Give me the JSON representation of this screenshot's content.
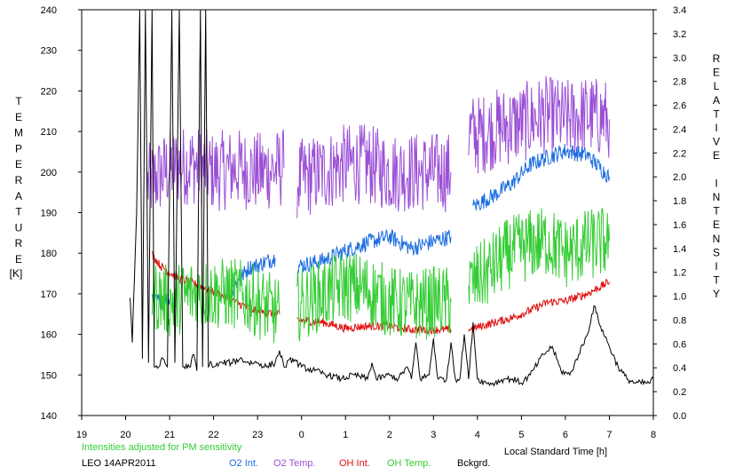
{
  "chart_data": {
    "type": "line",
    "left_axis": {
      "label_letters": [
        "T",
        "E",
        "M",
        "P",
        "E",
        "R",
        "A",
        "T",
        "U",
        "R",
        "E"
      ],
      "unit": "[K]",
      "ylim": [
        140,
        240
      ],
      "ticks": [
        "140",
        "150",
        "160",
        "170",
        "180",
        "190",
        "200",
        "210",
        "220",
        "230",
        "240"
      ]
    },
    "right_axis": {
      "label_letters": [
        "R",
        "E",
        "L",
        "A",
        "T",
        "I",
        "V",
        "E",
        "",
        "I",
        "N",
        "T",
        "E",
        "N",
        "S",
        "I",
        "T",
        "Y"
      ],
      "ylim": [
        0.0,
        3.4
      ],
      "ticks": [
        "0.0",
        "0.2",
        "0.4",
        "0.6",
        "0.8",
        "1.0",
        "1.2",
        "1.4",
        "1.6",
        "1.8",
        "2.0",
        "2.2",
        "2.4",
        "2.6",
        "2.8",
        "3.0",
        "3.2",
        "3.4"
      ]
    },
    "x_axis": {
      "label": "Local Standard Time [h]",
      "ticks": [
        "19",
        "20",
        "21",
        "22",
        "23",
        "0",
        "1",
        "2",
        "3",
        "4",
        "5",
        "6",
        "7",
        "8"
      ],
      "xlim": [
        19,
        32
      ]
    },
    "note": "Intensities adjusted for PM sensitivity",
    "station": "LEO 14APR2011",
    "legend": [
      {
        "label": "O2 Int.",
        "color": "#1e6ee0"
      },
      {
        "label": "O2 Temp.",
        "color": "#9b4fd6"
      },
      {
        "label": "OH Int.",
        "color": "#e01010"
      },
      {
        "label": "OH Temp.",
        "color": "#33cc33"
      },
      {
        "label": "Bckgrd.",
        "color": "#000000"
      }
    ],
    "series": [
      {
        "name": "O2 Temp.",
        "axis": "left",
        "color": "#9b4fd6",
        "noise": 10,
        "segments": [
          [
            [
              20.5,
              197
            ],
            [
              21.0,
              201
            ],
            [
              21.5,
              202
            ],
            [
              22.0,
              200
            ],
            [
              22.5,
              201
            ],
            [
              23.0,
              200
            ],
            [
              23.6,
              201
            ]
          ],
          [
            [
              23.9,
              198
            ],
            [
              24.5,
              200
            ],
            [
              25.0,
              202
            ],
            [
              25.5,
              202
            ],
            [
              26.0,
              200
            ],
            [
              26.5,
              200
            ],
            [
              27.0,
              200
            ],
            [
              27.4,
              200
            ]
          ],
          [
            [
              27.8,
              210
            ],
            [
              28.0,
              209
            ],
            [
              28.5,
              211
            ],
            [
              29.0,
              212
            ],
            [
              29.5,
              214
            ],
            [
              30.0,
              213
            ],
            [
              30.5,
              214
            ],
            [
              31.0,
              213
            ]
          ]
        ]
      },
      {
        "name": "O2 Int.",
        "axis": "right",
        "color": "#1e6ee0",
        "noise": 0.07,
        "segments": [
          [
            [
              20.6,
              0.95
            ],
            [
              21.0,
              0.98
            ]
          ],
          [
            [
              22.4,
              1.05
            ],
            [
              22.8,
              1.24
            ],
            [
              23.0,
              1.26
            ],
            [
              23.4,
              1.32
            ]
          ],
          [
            [
              23.9,
              1.25
            ],
            [
              24.5,
              1.3
            ],
            [
              25.0,
              1.38
            ],
            [
              25.5,
              1.45
            ],
            [
              26.0,
              1.5
            ],
            [
              26.5,
              1.4
            ],
            [
              27.0,
              1.46
            ],
            [
              27.4,
              1.5
            ]
          ],
          [
            [
              27.9,
              1.75
            ],
            [
              28.4,
              1.85
            ],
            [
              28.8,
              1.95
            ],
            [
              29.2,
              2.1
            ],
            [
              29.5,
              2.15
            ],
            [
              30.0,
              2.22
            ],
            [
              30.5,
              2.18
            ],
            [
              31.0,
              2.0
            ]
          ]
        ]
      },
      {
        "name": "OH Int.",
        "axis": "right",
        "color": "#e01010",
        "noise": 0.035,
        "segments": [
          [
            [
              20.6,
              1.35
            ],
            [
              20.8,
              1.25
            ],
            [
              21.2,
              1.15
            ],
            [
              21.6,
              1.1
            ],
            [
              21.9,
              1.05
            ],
            [
              22.2,
              1.0
            ],
            [
              22.5,
              0.95
            ],
            [
              23.0,
              0.87
            ],
            [
              23.5,
              0.85
            ]
          ],
          [
            [
              23.9,
              0.8
            ],
            [
              24.5,
              0.78
            ],
            [
              25.0,
              0.73
            ],
            [
              25.5,
              0.75
            ],
            [
              26.0,
              0.75
            ],
            [
              26.5,
              0.72
            ],
            [
              27.0,
              0.72
            ],
            [
              27.4,
              0.72
            ]
          ],
          [
            [
              27.8,
              0.72
            ],
            [
              28.2,
              0.76
            ],
            [
              28.8,
              0.82
            ],
            [
              29.2,
              0.88
            ],
            [
              29.6,
              0.95
            ],
            [
              30.0,
              0.96
            ],
            [
              30.5,
              1.02
            ],
            [
              31.0,
              1.12
            ]
          ]
        ]
      },
      {
        "name": "OH Temp.",
        "axis": "left",
        "color": "#33cc33",
        "noise": 9,
        "segments": [
          [
            [
              20.6,
              170
            ],
            [
              21.0,
              168
            ],
            [
              21.5,
              170
            ],
            [
              22.0,
              170
            ],
            [
              22.5,
              170
            ],
            [
              23.0,
              168
            ],
            [
              23.5,
              165
            ]
          ],
          [
            [
              23.9,
              167
            ],
            [
              24.5,
              170
            ],
            [
              25.0,
              172
            ],
            [
              25.5,
              171
            ],
            [
              26.0,
              168
            ],
            [
              26.5,
              167
            ],
            [
              27.0,
              168
            ],
            [
              27.4,
              168
            ]
          ],
          [
            [
              27.8,
              172
            ],
            [
              28.2,
              175
            ],
            [
              28.7,
              180
            ],
            [
              29.2,
              182
            ],
            [
              29.6,
              183
            ],
            [
              30.0,
              180
            ],
            [
              30.5,
              182
            ],
            [
              31.0,
              183
            ]
          ]
        ]
      },
      {
        "name": "Bckgrd.",
        "axis": "left",
        "color": "#000000",
        "noise": 0.8,
        "segments": [
          [
            [
              20.1,
              169
            ],
            [
              20.15,
              158
            ],
            [
              20.25,
              190
            ],
            [
              20.32,
              240
            ],
            [
              20.38,
              154
            ],
            [
              20.45,
              240
            ],
            [
              20.52,
              153
            ],
            [
              20.6,
              240
            ],
            [
              20.65,
              152
            ],
            [
              20.75,
              152
            ],
            [
              20.85,
              154
            ],
            [
              20.95,
              152
            ],
            [
              21.05,
              240
            ],
            [
              21.12,
              153
            ],
            [
              21.22,
              240
            ],
            [
              21.3,
              152
            ],
            [
              21.45,
              152
            ],
            [
              21.55,
              155
            ],
            [
              21.62,
              151
            ],
            [
              21.7,
              240
            ],
            [
              21.75,
              152
            ],
            [
              21.82,
              240
            ],
            [
              21.88,
              152
            ],
            [
              21.95,
              153
            ],
            [
              22.0,
              152
            ],
            [
              22.2,
              153
            ],
            [
              22.4,
              153
            ],
            [
              22.6,
              154
            ],
            [
              22.8,
              153
            ],
            [
              23.0,
              153
            ],
            [
              23.2,
              152
            ],
            [
              23.4,
              153
            ],
            [
              23.5,
              156
            ],
            [
              23.6,
              152
            ],
            [
              23.8,
              154
            ],
            [
              24.0,
              152
            ],
            [
              24.3,
              151
            ],
            [
              24.6,
              150
            ],
            [
              24.9,
              149
            ],
            [
              25.2,
              150
            ],
            [
              25.5,
              149
            ],
            [
              25.6,
              153
            ],
            [
              25.7,
              149
            ],
            [
              26.0,
              150
            ],
            [
              26.2,
              149
            ],
            [
              26.4,
              152
            ],
            [
              26.5,
              149
            ],
            [
              26.6,
              158
            ],
            [
              26.7,
              149
            ],
            [
              26.9,
              150
            ],
            [
              27.0,
              159
            ],
            [
              27.1,
              149
            ],
            [
              27.3,
              149
            ],
            [
              27.4,
              158
            ],
            [
              27.5,
              149
            ],
            [
              27.6,
              149
            ],
            [
              27.7,
              160
            ],
            [
              27.8,
              149
            ],
            [
              27.9,
              163
            ],
            [
              28.0,
              149
            ],
            [
              28.2,
              148
            ],
            [
              28.4,
              148
            ],
            [
              28.6,
              149
            ],
            [
              28.8,
              149
            ],
            [
              29.0,
              148
            ],
            [
              29.2,
              150
            ],
            [
              29.5,
              155
            ],
            [
              29.7,
              157
            ],
            [
              29.9,
              151
            ],
            [
              30.1,
              150
            ],
            [
              30.3,
              155
            ],
            [
              30.5,
              160
            ],
            [
              30.65,
              167
            ],
            [
              30.8,
              162
            ],
            [
              31.0,
              157
            ],
            [
              31.2,
              152
            ],
            [
              31.4,
              149
            ],
            [
              31.6,
              148
            ],
            [
              31.9,
              148
            ],
            [
              32.0,
              149
            ]
          ]
        ]
      }
    ]
  }
}
